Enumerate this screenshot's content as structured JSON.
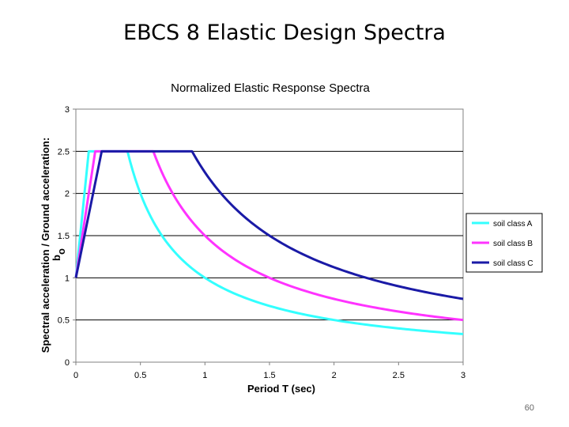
{
  "slide": {
    "title": "EBCS 8 Elastic Design Spectra",
    "page_number": "60"
  },
  "chart_data": {
    "type": "line",
    "title": "Normalized Elastic Response Spectra",
    "xlabel": "Period T (sec)",
    "ylabel": "Spectral acceleration / Ground acceleration:",
    "ylabel_symbol": "b",
    "ylabel_subscript": "o",
    "xlim": [
      0,
      3
    ],
    "ylim": [
      0,
      3
    ],
    "x_ticks": [
      "0",
      "0.5",
      "1",
      "1.5",
      "2",
      "2.5",
      "3"
    ],
    "y_ticks": [
      "0",
      "0.5",
      "1",
      "1.5",
      "2",
      "2.5",
      "3"
    ],
    "grid": "horizontal",
    "legend_position": "right",
    "series": [
      {
        "name": "soil class A",
        "color": "#33ffff",
        "TB": 0.1,
        "TC": 0.4
      },
      {
        "name": "soil class B",
        "color": "#ff33ff",
        "TB": 0.15,
        "TC": 0.6
      },
      {
        "name": "soil class C",
        "color": "#1a1aa6",
        "TB": 0.2,
        "TC": 0.9
      }
    ],
    "plateau": 2.5,
    "start_value": 1.0
  }
}
